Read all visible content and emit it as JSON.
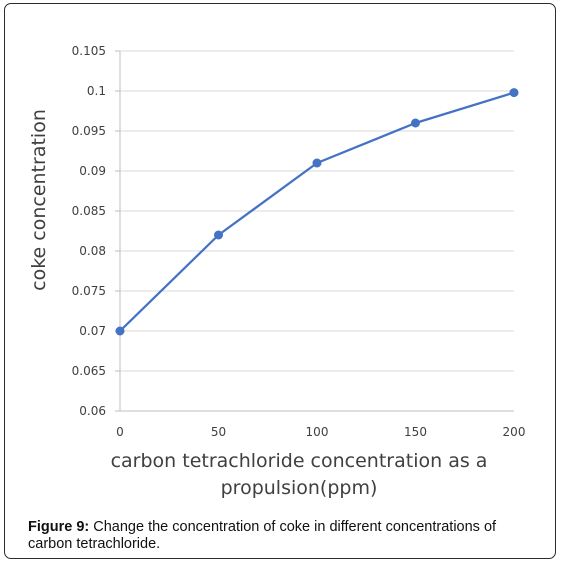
{
  "caption": {
    "label": "Figure 9:",
    "text": " Change the concentration of coke in different concentrations of carbon tetrachloride."
  },
  "chart_data": {
    "type": "line",
    "title": "",
    "xlabel_lines": [
      "carbon tetrachloride concentration as a",
      "propulsion(ppm)"
    ],
    "ylabel": "coke concentration",
    "x_ticks": [
      "0",
      "50",
      "100",
      "150",
      "200"
    ],
    "y_ticks": [
      "0.06",
      "0.065",
      "0.07",
      "0.075",
      "0.08",
      "0.085",
      "0.09",
      "0.095",
      "0.1",
      "0.105"
    ],
    "xlim": [
      0,
      200
    ],
    "ylim": [
      0.06,
      0.105
    ],
    "grid": "horizontal",
    "series": [
      {
        "x": [
          0,
          50,
          100,
          150,
          200
        ],
        "y": [
          0.07,
          0.082,
          0.091,
          0.096,
          0.0998
        ],
        "color": "#4472c4"
      }
    ]
  }
}
